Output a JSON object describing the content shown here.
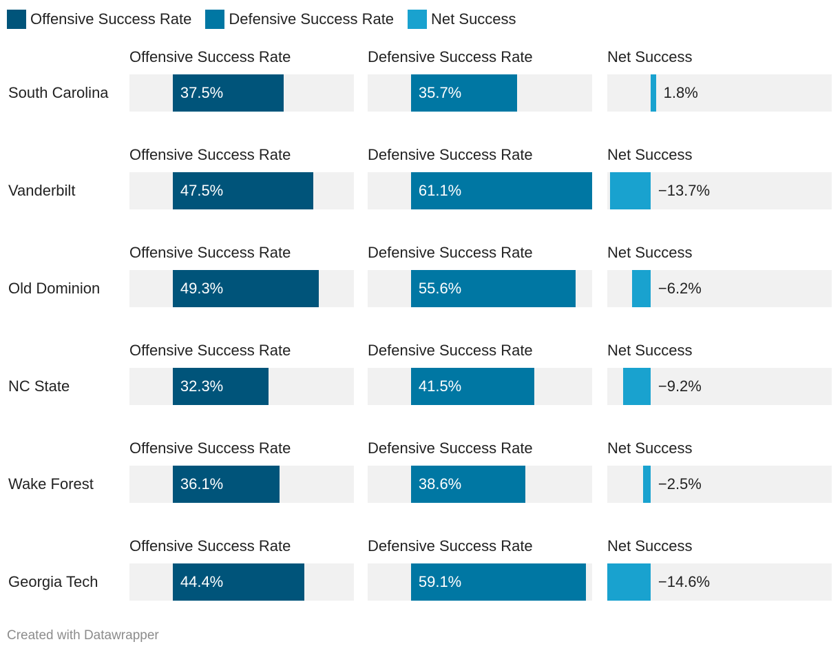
{
  "legend": [
    {
      "label": "Offensive Success Rate",
      "color": "#00547a"
    },
    {
      "label": "Defensive Success Rate",
      "color": "#0077a3"
    },
    {
      "label": "Net Success",
      "color": "#19a2cf"
    }
  ],
  "footer": "Created with Datawrapper",
  "chart_data": {
    "type": "bar",
    "orientation": "horizontal",
    "layout": "small-multiples",
    "title": "",
    "categories": [
      "South Carolina",
      "Vanderbilt",
      "Old Dominion",
      "NC State",
      "Wake Forest",
      "Georgia Tech"
    ],
    "series": [
      {
        "name": "Offensive Success Rate",
        "color": "#00547a",
        "values": [
          37.5,
          47.5,
          49.3,
          32.3,
          36.1,
          44.4
        ],
        "labels": [
          "37.5%",
          "47.5%",
          "49.3%",
          "32.3%",
          "36.1%",
          "44.4%"
        ],
        "xlim": [
          -14.6,
          61.1
        ]
      },
      {
        "name": "Defensive Success Rate",
        "color": "#0077a3",
        "values": [
          35.7,
          61.1,
          55.6,
          41.5,
          38.6,
          59.1
        ],
        "labels": [
          "35.7%",
          "61.1%",
          "55.6%",
          "41.5%",
          "38.6%",
          "59.1%"
        ],
        "xlim": [
          -14.6,
          61.1
        ]
      },
      {
        "name": "Net Success",
        "color": "#19a2cf",
        "values": [
          1.8,
          -13.7,
          -6.2,
          -9.2,
          -2.5,
          -14.6
        ],
        "labels": [
          "1.8%",
          "−13.7%",
          "−6.2%",
          "−9.2%",
          "−2.5%",
          "−14.6%"
        ],
        "xlim": [
          -14.6,
          61.1
        ]
      }
    ]
  }
}
